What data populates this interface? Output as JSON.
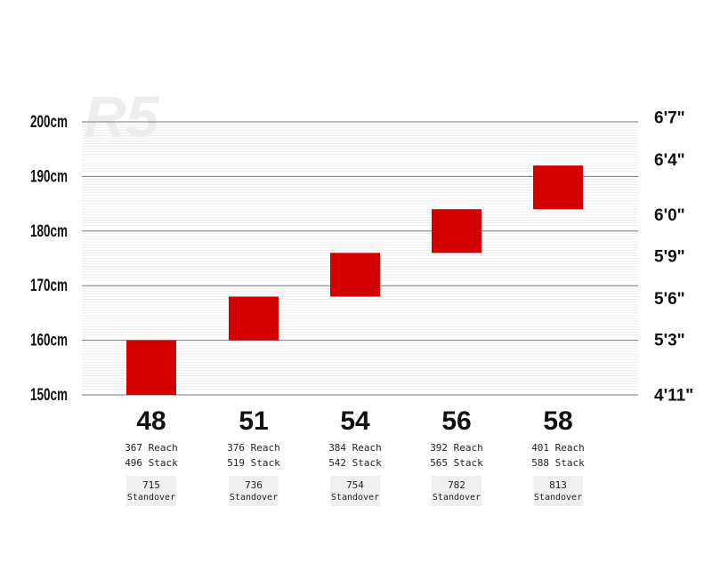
{
  "chart_data": {
    "type": "bar",
    "watermark": "R5",
    "y_left": {
      "unit": "cm",
      "range": [
        150,
        200
      ],
      "ticks": [
        {
          "value": 200,
          "label": "200cm"
        },
        {
          "value": 190,
          "label": "190cm"
        },
        {
          "value": 180,
          "label": "180cm"
        },
        {
          "value": 170,
          "label": "170cm"
        },
        {
          "value": 160,
          "label": "160cm"
        },
        {
          "value": 150,
          "label": "150cm"
        }
      ]
    },
    "y_right": {
      "ticks": [
        {
          "value": 200.7,
          "label": "6'7\""
        },
        {
          "value": 193.0,
          "label": "6'4\""
        },
        {
          "value": 182.9,
          "label": "6'0\""
        },
        {
          "value": 175.3,
          "label": "5'9\""
        },
        {
          "value": 167.6,
          "label": "5'6\""
        },
        {
          "value": 160.0,
          "label": "5'3\""
        },
        {
          "value": 149.9,
          "label": "4'11\""
        }
      ]
    },
    "grid": true,
    "bar_color": "#d40000",
    "sizes": [
      {
        "size": "48",
        "min": 150,
        "max": 160,
        "reach": "367 Reach",
        "stack": "496 Stack",
        "standover": "715",
        "standover_label": "Standover"
      },
      {
        "size": "51",
        "min": 160,
        "max": 168,
        "reach": "376 Reach",
        "stack": "519 Stack",
        "standover": "736",
        "standover_label": "Standover"
      },
      {
        "size": "54",
        "min": 168,
        "max": 176,
        "reach": "384 Reach",
        "stack": "542 Stack",
        "standover": "754",
        "standover_label": "Standover"
      },
      {
        "size": "56",
        "min": 176,
        "max": 184,
        "reach": "392 Reach",
        "stack": "565 Stack",
        "standover": "782",
        "standover_label": "Standover"
      },
      {
        "size": "58",
        "min": 184,
        "max": 192,
        "reach": "401 Reach",
        "stack": "588 Stack",
        "standover": "813",
        "standover_label": "Standover"
      }
    ]
  }
}
